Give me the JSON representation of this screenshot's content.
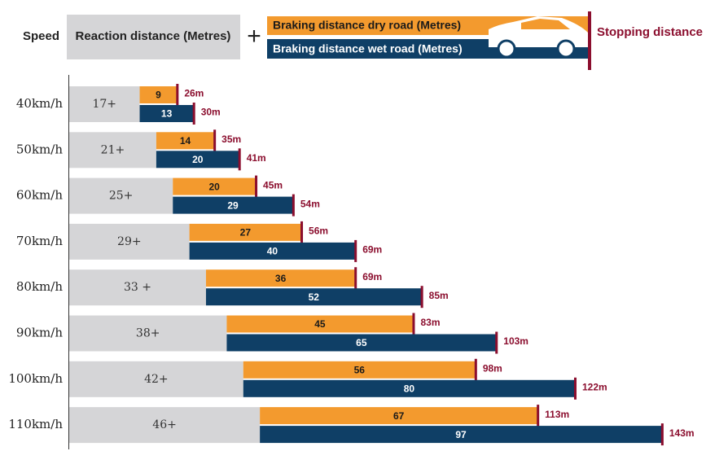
{
  "chart_data": {
    "type": "bar",
    "legend": {
      "speed": "Speed",
      "reaction": "Reaction distance (Metres)",
      "plus": "+",
      "dry": "Braking distance dry road (Metres)",
      "wet": "Braking distance wet road (Metres)",
      "stopping": "Stopping distance"
    },
    "categories": [
      "40km/h",
      "50km/h",
      "60km/h",
      "70km/h",
      "80km/h",
      "90km/h",
      "100km/h",
      "110km/h"
    ],
    "series": [
      {
        "name": "Reaction distance (Metres)",
        "color": "#d5d5d7",
        "values": [
          17,
          21,
          25,
          29,
          33,
          38,
          42,
          46
        ],
        "value_labels": [
          "17+",
          "21+",
          "25+",
          "29+",
          "33 +",
          "38+",
          "42+",
          "46+"
        ]
      },
      {
        "name": "Braking distance dry road (Metres)",
        "color": "#f39a2e",
        "values": [
          9,
          14,
          20,
          27,
          36,
          45,
          56,
          67
        ]
      },
      {
        "name": "Braking distance wet road (Metres)",
        "color": "#0f3f66",
        "values": [
          13,
          20,
          29,
          40,
          52,
          65,
          80,
          97
        ]
      }
    ],
    "stopping_dry": {
      "color": "#8b0e2e",
      "values": [
        26,
        35,
        45,
        56,
        69,
        83,
        98,
        113
      ],
      "value_labels": [
        "26m",
        "35m",
        "45m",
        "56m",
        "69m",
        "83m",
        "98m",
        "113m"
      ]
    },
    "stopping_wet": {
      "color": "#8b0e2e",
      "values": [
        30,
        41,
        54,
        69,
        85,
        103,
        122,
        143
      ],
      "value_labels": [
        "30m",
        "41m",
        "54m",
        "69m",
        "85m",
        "103m",
        "122m",
        "143m"
      ]
    }
  }
}
